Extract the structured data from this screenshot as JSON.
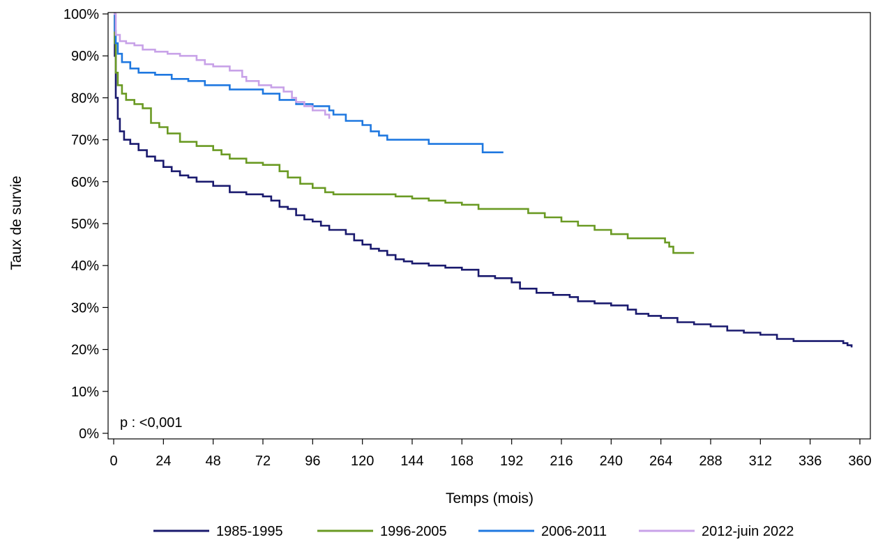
{
  "chart_data": {
    "type": "line",
    "xlabel": "Temps (mois)",
    "ylabel": "Taux de survie",
    "xlim": [
      0,
      360
    ],
    "ylim": [
      0,
      100
    ],
    "x_ticks": [
      "0",
      "24",
      "48",
      "72",
      "96",
      "120",
      "144",
      "168",
      "192",
      "216",
      "240",
      "264",
      "288",
      "312",
      "336",
      "360"
    ],
    "y_ticks": [
      "0%",
      "10%",
      "20%",
      "30%",
      "40%",
      "50%",
      "60%",
      "70%",
      "80%",
      "90%",
      "100%"
    ],
    "annotation": "p : <0,001",
    "grid": false,
    "legend_position": "bottom",
    "series": [
      {
        "name": "1985-1995",
        "color": "#1a1a6e",
        "points": [
          [
            0,
            100
          ],
          [
            0.5,
            90
          ],
          [
            1,
            80
          ],
          [
            2,
            75
          ],
          [
            3,
            72
          ],
          [
            5,
            70
          ],
          [
            8,
            69
          ],
          [
            12,
            67.5
          ],
          [
            16,
            66
          ],
          [
            20,
            65
          ],
          [
            24,
            63.5
          ],
          [
            28,
            62.5
          ],
          [
            32,
            61.5
          ],
          [
            36,
            61
          ],
          [
            40,
            60
          ],
          [
            48,
            59
          ],
          [
            56,
            57.5
          ],
          [
            64,
            57
          ],
          [
            72,
            56.5
          ],
          [
            76,
            55.5
          ],
          [
            80,
            54
          ],
          [
            84,
            53.5
          ],
          [
            88,
            52
          ],
          [
            92,
            51
          ],
          [
            96,
            50.5
          ],
          [
            100,
            49.5
          ],
          [
            104,
            48.5
          ],
          [
            112,
            47.5
          ],
          [
            116,
            46
          ],
          [
            120,
            45
          ],
          [
            124,
            44
          ],
          [
            128,
            43.5
          ],
          [
            132,
            42.5
          ],
          [
            136,
            41.5
          ],
          [
            140,
            41
          ],
          [
            144,
            40.5
          ],
          [
            152,
            40
          ],
          [
            160,
            39.5
          ],
          [
            168,
            39
          ],
          [
            176,
            37.5
          ],
          [
            184,
            37
          ],
          [
            192,
            36
          ],
          [
            196,
            34.5
          ],
          [
            204,
            33.5
          ],
          [
            212,
            33
          ],
          [
            220,
            32.5
          ],
          [
            224,
            31.5
          ],
          [
            232,
            31
          ],
          [
            240,
            30.5
          ],
          [
            248,
            29.5
          ],
          [
            252,
            28.5
          ],
          [
            258,
            28
          ],
          [
            264,
            27.5
          ],
          [
            272,
            26.5
          ],
          [
            280,
            26
          ],
          [
            288,
            25.5
          ],
          [
            296,
            24.5
          ],
          [
            304,
            24
          ],
          [
            312,
            23.5
          ],
          [
            320,
            22.5
          ],
          [
            328,
            22
          ],
          [
            336,
            22
          ],
          [
            344,
            22
          ],
          [
            348,
            22
          ],
          [
            352,
            21.5
          ],
          [
            354,
            21
          ],
          [
            356,
            20.5
          ]
        ]
      },
      {
        "name": "1996-2005",
        "color": "#6a9a23",
        "points": [
          [
            0,
            100
          ],
          [
            0.5,
            93
          ],
          [
            1,
            86
          ],
          [
            2,
            83
          ],
          [
            4,
            81
          ],
          [
            6,
            79.5
          ],
          [
            10,
            78.5
          ],
          [
            14,
            77.5
          ],
          [
            18,
            74
          ],
          [
            22,
            73
          ],
          [
            26,
            71.5
          ],
          [
            32,
            69.5
          ],
          [
            40,
            68.5
          ],
          [
            48,
            67.5
          ],
          [
            52,
            66.5
          ],
          [
            56,
            65.5
          ],
          [
            64,
            64.5
          ],
          [
            72,
            64
          ],
          [
            80,
            62.5
          ],
          [
            84,
            61
          ],
          [
            90,
            59.5
          ],
          [
            96,
            58.5
          ],
          [
            102,
            57.5
          ],
          [
            106,
            57
          ],
          [
            120,
            57
          ],
          [
            136,
            56.5
          ],
          [
            144,
            56
          ],
          [
            152,
            55.5
          ],
          [
            160,
            55
          ],
          [
            168,
            54.5
          ],
          [
            176,
            53.5
          ],
          [
            184,
            53.5
          ],
          [
            196,
            53.5
          ],
          [
            200,
            52.5
          ],
          [
            208,
            51.5
          ],
          [
            216,
            50.5
          ],
          [
            224,
            49.5
          ],
          [
            232,
            48.5
          ],
          [
            240,
            47.5
          ],
          [
            248,
            46.5
          ],
          [
            256,
            46.5
          ],
          [
            264,
            46.5
          ],
          [
            266,
            45.5
          ],
          [
            268,
            44.5
          ],
          [
            270,
            43
          ],
          [
            280,
            43
          ]
        ]
      },
      {
        "name": "2006-2011",
        "color": "#1f78e0",
        "points": [
          [
            0,
            100
          ],
          [
            0.5,
            96
          ],
          [
            1,
            93
          ],
          [
            2,
            90.5
          ],
          [
            4,
            88.5
          ],
          [
            8,
            87
          ],
          [
            12,
            86
          ],
          [
            20,
            85.5
          ],
          [
            28,
            84.5
          ],
          [
            36,
            84
          ],
          [
            44,
            83
          ],
          [
            56,
            82
          ],
          [
            72,
            81
          ],
          [
            80,
            79.5
          ],
          [
            88,
            78.5
          ],
          [
            96,
            78
          ],
          [
            104,
            77
          ],
          [
            106,
            76
          ],
          [
            112,
            74.5
          ],
          [
            120,
            73.5
          ],
          [
            124,
            72
          ],
          [
            128,
            71
          ],
          [
            132,
            70
          ],
          [
            140,
            70
          ],
          [
            148,
            70
          ],
          [
            152,
            69
          ],
          [
            160,
            69
          ],
          [
            168,
            69
          ],
          [
            176,
            69
          ],
          [
            178,
            67
          ],
          [
            188,
            67
          ]
        ]
      },
      {
        "name": "2012-juin 2022",
        "color": "#c8a2e8",
        "points": [
          [
            0,
            100
          ],
          [
            1,
            95
          ],
          [
            3,
            93.5
          ],
          [
            6,
            93
          ],
          [
            10,
            92.5
          ],
          [
            14,
            91.5
          ],
          [
            20,
            91
          ],
          [
            26,
            90.5
          ],
          [
            32,
            90
          ],
          [
            40,
            89
          ],
          [
            44,
            88
          ],
          [
            48,
            87.5
          ],
          [
            56,
            86.5
          ],
          [
            62,
            85
          ],
          [
            64,
            84
          ],
          [
            70,
            83
          ],
          [
            76,
            82.5
          ],
          [
            82,
            81.5
          ],
          [
            86,
            80
          ],
          [
            88,
            79
          ],
          [
            92,
            78
          ],
          [
            96,
            77
          ],
          [
            100,
            77
          ],
          [
            102,
            76
          ],
          [
            104,
            75
          ]
        ]
      }
    ]
  }
}
